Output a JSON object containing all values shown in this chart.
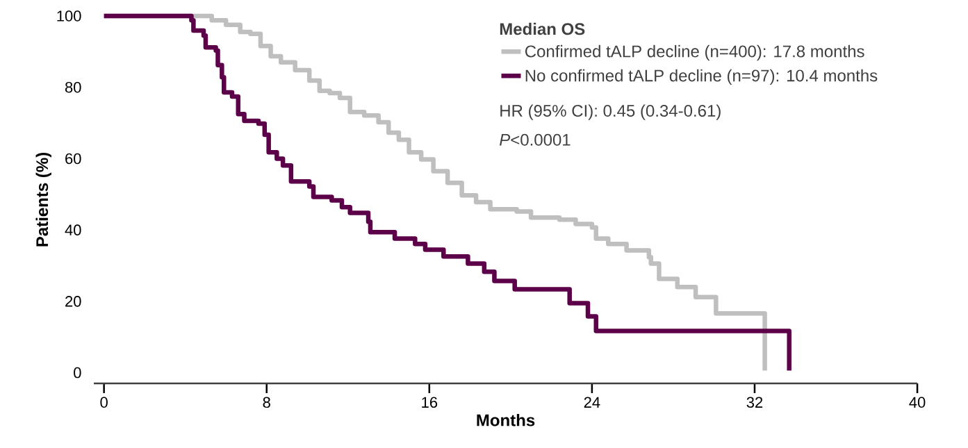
{
  "chart_data": {
    "type": "step",
    "xlabel": "Months",
    "ylabel": "Patients  (%)",
    "legend_title": "Median OS",
    "xlim": [
      -0.5,
      40
    ],
    "ylim": [
      -3,
      100
    ],
    "xticks": [
      0,
      8,
      16,
      24,
      32,
      40
    ],
    "yticks": [
      0,
      20,
      40,
      60,
      80,
      100
    ],
    "grid": false,
    "legend": "top right",
    "marker": "none",
    "line_style": "solid",
    "annotations": [
      "HR (95% CI): 0.45 (0.34-0.61)",
      "*P*<0.0001"
    ],
    "series": [
      {
        "name": "Confirmed tALP decline (n=400): 17.8 months",
        "color": "#bfbfbf",
        "x": [
          0,
          5.0,
          5.3,
          6.0,
          6.7,
          7.2,
          7.7,
          8.2,
          8.7,
          9.4,
          10.1,
          10.6,
          11.1,
          11.6,
          12.1,
          12.8,
          13.5,
          14.0,
          14.5,
          15.0,
          15.6,
          16.2,
          16.9,
          17.6,
          18.3,
          19.0,
          20.3,
          21.0,
          22.4,
          23.2,
          24.0,
          24.2,
          24.8,
          25.7,
          26.8,
          26.9,
          27.3,
          28.2,
          29.1,
          30.1,
          32.5
        ],
        "values": [
          100,
          100,
          98.8,
          97.5,
          95.5,
          95,
          91.6,
          88.7,
          87,
          84.8,
          81.9,
          79,
          78.4,
          77,
          73.1,
          72.1,
          70.2,
          67.3,
          65.3,
          61.8,
          59.8,
          56.5,
          53.2,
          49.7,
          47.8,
          45.8,
          45.2,
          43.5,
          42.9,
          41.7,
          40.7,
          37.6,
          36.1,
          34.3,
          32.4,
          30.6,
          26.3,
          24,
          21.2,
          16.6,
          0.6
        ]
      },
      {
        "name": "No confirmed tALP decline (n=97): 10.4 months",
        "color": "#5c0049",
        "x": [
          0,
          3.9,
          4.3,
          4.4,
          4.9,
          5.0,
          5.5,
          5.6,
          5.8,
          5.9,
          6.3,
          6.6,
          6.9,
          7.6,
          7.9,
          8.1,
          8.5,
          8.8,
          9.2,
          10.1,
          10.3,
          11.2,
          11.7,
          12.1,
          12.2,
          13.0,
          13.1,
          14.3,
          15.3,
          15.8,
          16.7,
          17.9,
          18.7,
          19.2,
          20.2,
          22.9,
          23.8,
          24.2,
          33.7
        ],
        "values": [
          100,
          100,
          98.8,
          95.9,
          94.5,
          91.2,
          90.3,
          86.2,
          82.8,
          78.6,
          77.4,
          72.5,
          70.6,
          69.8,
          66.7,
          61.8,
          60,
          58.1,
          53.6,
          52.2,
          49.3,
          48.3,
          46.4,
          44.8,
          44.8,
          42.3,
          39.4,
          37.6,
          36.1,
          34.5,
          32.6,
          30.6,
          28.3,
          25.7,
          23.4,
          19.5,
          15.8,
          11.7,
          0.6
        ]
      }
    ]
  }
}
